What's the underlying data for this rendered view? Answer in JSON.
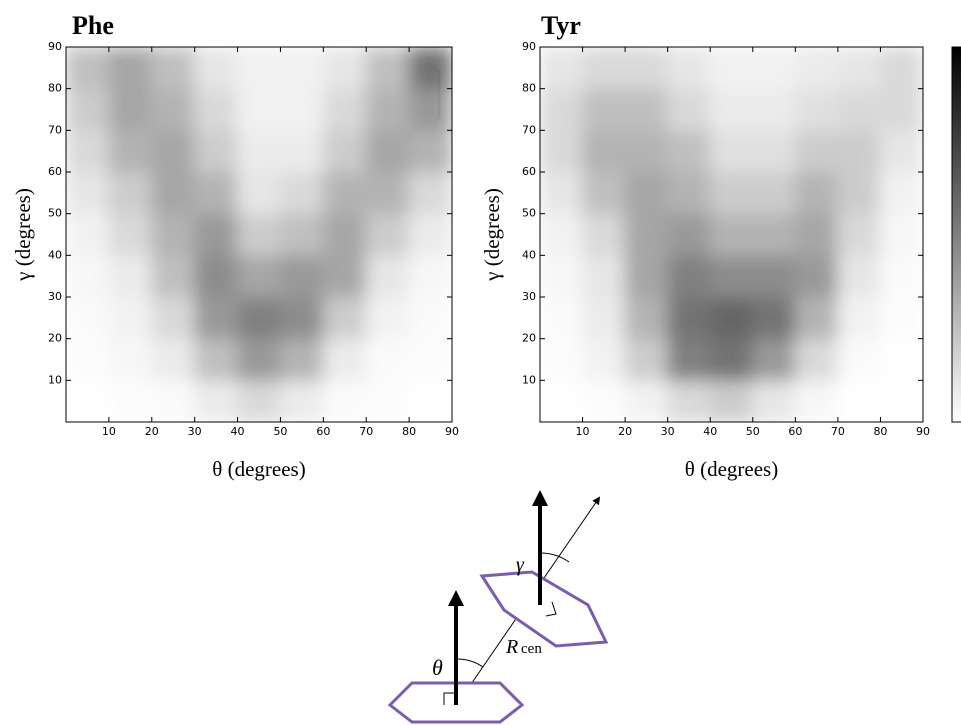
{
  "chart_data": [
    {
      "type": "heatmap",
      "title": "Phe",
      "xlabel": "θ (degrees)",
      "ylabel": "γ (degrees)",
      "xbins": [
        0,
        10,
        20,
        30,
        40,
        50,
        60,
        70,
        80,
        90
      ],
      "ybins": [
        0,
        10,
        20,
        30,
        40,
        50,
        60,
        70,
        80,
        90
      ],
      "xlim": [
        0,
        90
      ],
      "ylim": [
        0,
        90
      ],
      "xticks": [
        10,
        20,
        30,
        40,
        50,
        60,
        70,
        80,
        90
      ],
      "yticks": [
        10,
        20,
        30,
        40,
        50,
        60,
        70,
        80,
        90
      ],
      "values": [
        [
          0,
          0.01,
          0.02,
          0.08,
          0.15,
          0.08,
          0.02,
          0.01,
          0
        ],
        [
          0.01,
          0.03,
          0.08,
          0.25,
          0.4,
          0.3,
          0.08,
          0.02,
          0.01
        ],
        [
          0.02,
          0.05,
          0.15,
          0.4,
          0.5,
          0.45,
          0.2,
          0.05,
          0.02
        ],
        [
          0.03,
          0.08,
          0.25,
          0.45,
          0.35,
          0.4,
          0.35,
          0.1,
          0.03
        ],
        [
          0.05,
          0.15,
          0.3,
          0.4,
          0.2,
          0.25,
          0.35,
          0.2,
          0.08
        ],
        [
          0.1,
          0.2,
          0.35,
          0.3,
          0.1,
          0.15,
          0.3,
          0.3,
          0.15
        ],
        [
          0.15,
          0.3,
          0.35,
          0.2,
          0.08,
          0.08,
          0.2,
          0.35,
          0.3
        ],
        [
          0.2,
          0.35,
          0.3,
          0.15,
          0.05,
          0.05,
          0.15,
          0.3,
          0.4
        ],
        [
          0.25,
          0.35,
          0.25,
          0.1,
          0.05,
          0.05,
          0.1,
          0.25,
          0.55
        ]
      ]
    },
    {
      "type": "heatmap",
      "title": "Tyr",
      "xlabel": "θ (degrees)",
      "ylabel": "γ (degrees)",
      "xbins": [
        0,
        10,
        20,
        30,
        40,
        50,
        60,
        70,
        80,
        90
      ],
      "ybins": [
        0,
        10,
        20,
        30,
        40,
        50,
        60,
        70,
        80,
        90
      ],
      "xlim": [
        0,
        90
      ],
      "ylim": [
        0,
        90
      ],
      "xticks": [
        10,
        20,
        30,
        40,
        50,
        60,
        70,
        80,
        90
      ],
      "yticks": [
        10,
        20,
        30,
        40,
        50,
        60,
        70,
        80,
        90
      ],
      "values": [
        [
          0,
          0.01,
          0.05,
          0.15,
          0.2,
          0.1,
          0.03,
          0,
          0
        ],
        [
          0.01,
          0.05,
          0.2,
          0.5,
          0.55,
          0.4,
          0.15,
          0.02,
          0
        ],
        [
          0.02,
          0.08,
          0.3,
          0.55,
          0.6,
          0.55,
          0.3,
          0.05,
          0.01
        ],
        [
          0.03,
          0.1,
          0.35,
          0.5,
          0.45,
          0.45,
          0.4,
          0.1,
          0.02
        ],
        [
          0.05,
          0.15,
          0.35,
          0.4,
          0.3,
          0.3,
          0.35,
          0.15,
          0.03
        ],
        [
          0.1,
          0.25,
          0.35,
          0.3,
          0.2,
          0.2,
          0.3,
          0.2,
          0.05
        ],
        [
          0.15,
          0.3,
          0.3,
          0.25,
          0.12,
          0.12,
          0.2,
          0.2,
          0.1
        ],
        [
          0.15,
          0.25,
          0.25,
          0.15,
          0.08,
          0.08,
          0.12,
          0.15,
          0.15
        ],
        [
          0.1,
          0.15,
          0.15,
          0.1,
          0.05,
          0.05,
          0.08,
          0.1,
          0.15
        ]
      ]
    }
  ],
  "diagram": {
    "theta": "θ",
    "gamma": "γ",
    "r": "R",
    "r_sub": "cen"
  }
}
